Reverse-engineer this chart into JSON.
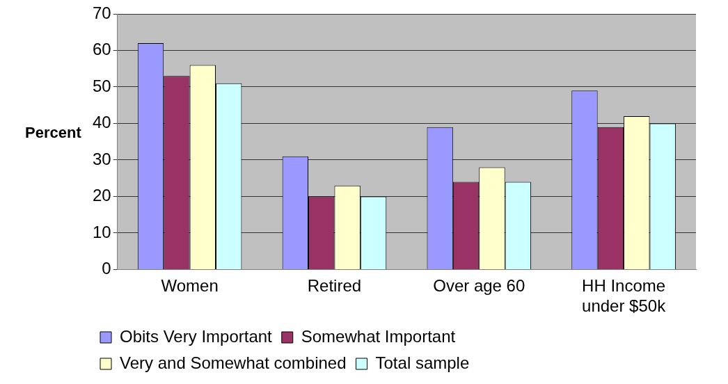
{
  "chart_data": {
    "type": "bar",
    "ylabel": "Percent",
    "categories": [
      "Women",
      "Retired",
      "Over age 60",
      "HH Income under $50k"
    ],
    "series": [
      {
        "name": "Obits Very Important",
        "color": "#9999ff",
        "values": [
          62,
          31,
          39,
          49
        ]
      },
      {
        "name": "Somewhat Important",
        "color": "#993366",
        "values": [
          53,
          20,
          24,
          39
        ]
      },
      {
        "name": "Very and Somewhat combined",
        "color": "#ffffcc",
        "values": [
          56,
          23,
          28,
          42
        ]
      },
      {
        "name": "Total sample",
        "color": "#ccffff",
        "values": [
          51,
          20,
          24,
          40
        ]
      }
    ],
    "ylim": [
      0,
      70
    ],
    "yticks": [
      0,
      10,
      20,
      30,
      40,
      50,
      60,
      70
    ],
    "grid": "y",
    "legend": "bottom"
  }
}
